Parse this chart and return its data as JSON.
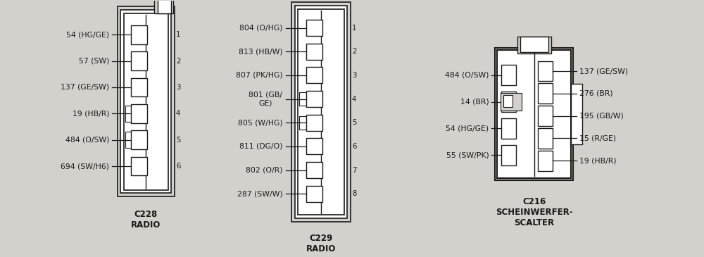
{
  "bg_color": "#d4d0cc",
  "line_color": "#1a1a1a",
  "white": "#ffffff",
  "dark_pin_color": "#666666",
  "title_fontsize": 8.5,
  "label_fontsize": 7.8,
  "c228": {
    "pins_left": [
      "54 (HG/GE)",
      "57 (SW)",
      "137 (GE/SW)",
      "19 (HB/R)",
      "484 (O/SW)",
      "694 (SW/H6)"
    ],
    "pin_numbers": [
      "1",
      "2",
      "3",
      "4",
      "5",
      "6"
    ],
    "title": "C228\nRADIO"
  },
  "c229": {
    "pins_left": [
      "804 (O/HG)",
      "813 (HB/W)",
      "807 (PK/HG)",
      "801 (GB/\nGE)",
      "805 (W/HG)",
      "811 (DG/O)",
      "802 (O/R)",
      "287 (SW/W)"
    ],
    "pin_numbers": [
      "1",
      "2",
      "3",
      "4",
      "5",
      "6",
      "7",
      "8"
    ],
    "title": "C229\nRADIO"
  },
  "c216": {
    "pins_left": [
      "484 (O/SW)",
      "14 (BR)",
      "54 (HG/GE)",
      "55 (SW/PK)"
    ],
    "pins_right": [
      "137 (GE/SW)",
      "276 (BR)",
      "195 (GB/W)",
      "15 (R/GE)",
      "19 (HB/R)"
    ],
    "title": "C216\nSCHEINWERFER-\nSCALTER"
  }
}
